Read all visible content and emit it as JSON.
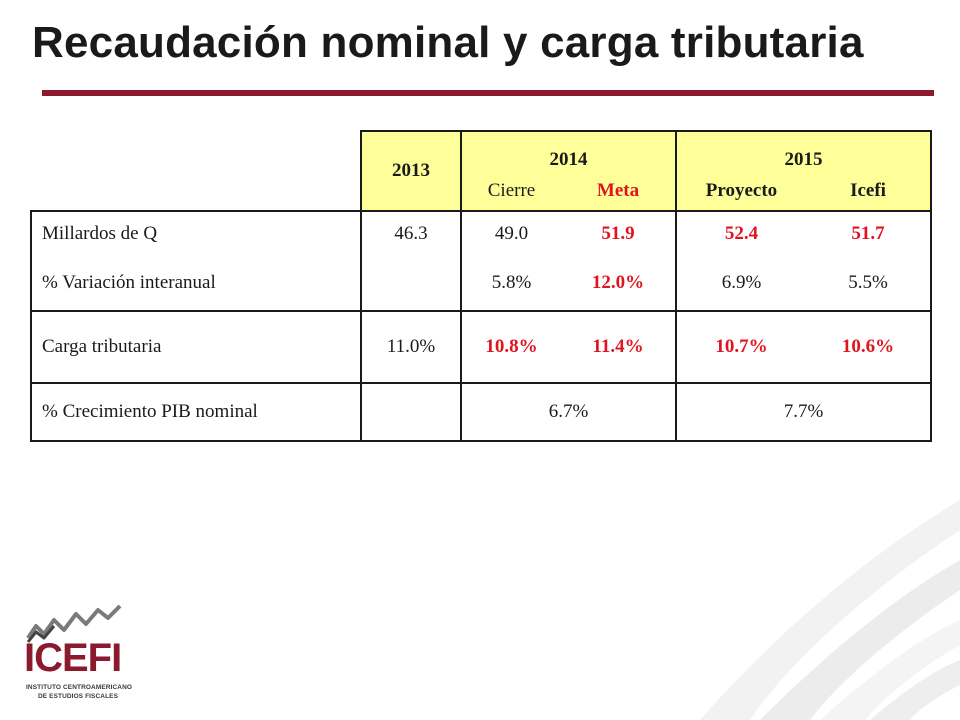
{
  "slide": {
    "title": "Recaudación nominal y carga tributaria",
    "accent_color": "#8b1a2e",
    "header_bg_color": "#ffff99",
    "highlight_color": "#e0141e"
  },
  "table": {
    "header": {
      "y2013": "2013",
      "y2014": "2014",
      "y2015": "2015",
      "cierre": "Cierre",
      "meta": "Meta",
      "proyecto": "Proyecto",
      "icefi": "Icefi"
    },
    "rows": {
      "millardos": {
        "label": "Millardos de Q",
        "v2013": "46.3",
        "cierre": "49.0",
        "meta": "51.9",
        "proyecto": "52.4",
        "icefi": "51.7"
      },
      "variacion": {
        "label": "% Variación interanual",
        "cierre": "5.8%",
        "meta": "12.0%",
        "proyecto": "6.9%",
        "icefi": "5.5%"
      },
      "carga": {
        "label": "Carga tributaria",
        "v2013": "11.0%",
        "cierre": "10.8%",
        "meta": "11.4%",
        "proyecto": "10.7%",
        "icefi": "10.6%"
      },
      "pib": {
        "label": "% Crecimiento PIB nominal",
        "v2014": "6.7%",
        "v2015": "7.7%"
      }
    }
  },
  "logo": {
    "name": "ICEFI",
    "line1": "INSTITUTO CENTROAMERICANO",
    "line2": "DE ESTUDIOS FISCALES",
    "icon": "trend-line-icon"
  },
  "decoration": {
    "icon": "swoosh-decoration-icon"
  }
}
